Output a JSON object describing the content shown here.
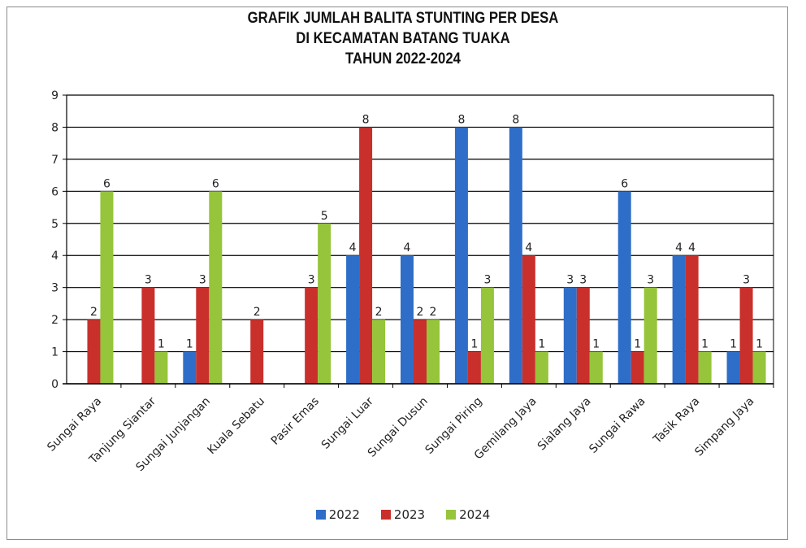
{
  "chart_data": {
    "type": "bar",
    "title": [
      "GRAFIK JUMLAH BALITA STUNTING PER DESA",
      "DI KECAMATAN BATANG TUAKA",
      "TAHUN 2022-2024"
    ],
    "categories": [
      "Sungai Raya",
      "Tanjung Siantar",
      "Sungai Junjangan",
      "Kuala Sebatu",
      "Pasir Emas",
      "Sungai Luar",
      "Sungai Dusun",
      "Sungai Piring",
      "Gemilang Jaya",
      "Sialang Jaya",
      "Sungai Rawa",
      "Tasik Raya",
      "Simpang Jaya"
    ],
    "series": [
      {
        "name": "2022",
        "color": "#2f6ec8",
        "values": [
          0,
          0,
          1,
          0,
          0,
          4,
          4,
          8,
          8,
          3,
          6,
          4,
          1
        ]
      },
      {
        "name": "2023",
        "color": "#c9302c",
        "values": [
          2,
          3,
          3,
          2,
          3,
          8,
          2,
          1,
          4,
          3,
          1,
          4,
          3
        ]
      },
      {
        "name": "2024",
        "color": "#96c43a",
        "values": [
          6,
          1,
          6,
          0,
          5,
          2,
          2,
          3,
          1,
          1,
          3,
          1,
          1
        ]
      }
    ],
    "ylim": [
      0,
      9
    ],
    "yticks": [
      0,
      1,
      2,
      3,
      4,
      5,
      6,
      7,
      8,
      9
    ],
    "grid": true,
    "legend_position": "bottom"
  }
}
